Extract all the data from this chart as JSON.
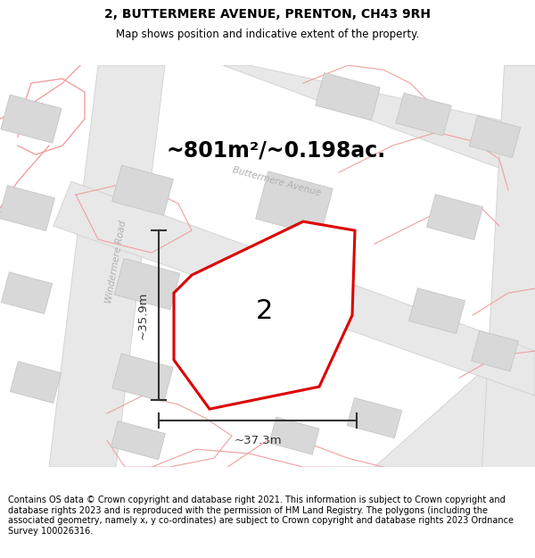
{
  "title": "2, BUTTERMERE AVENUE, PRENTON, CH43 9RH",
  "subtitle": "Map shows position and indicative extent of the property.",
  "area_label": "~801m²/~0.198ac.",
  "plot_number": "2",
  "dim_vertical": "~35.9m",
  "dim_horizontal": "~37.3m",
  "footer": "Contains OS data © Crown copyright and database right 2021. This information is subject to Crown copyright and database rights 2023 and is reproduced with the permission of HM Land Registry. The polygons (including the associated geometry, namely x, y co-ordinates) are subject to Crown copyright and database rights 2023 Ordnance Survey 100026316.",
  "background_color": "#ffffff",
  "road_fill": "#e8e8e8",
  "road_edge": "#d0d0d0",
  "building_fill": "#d8d8d8",
  "building_edge": "#c0c0c0",
  "red_line_color": "#dd0000",
  "pink_color": "#f0a0a0",
  "dim_color": "#333333",
  "label_color": "#b0b0b0",
  "title_fontsize": 10,
  "subtitle_fontsize": 8.5,
  "area_fontsize": 17,
  "plot_num_fontsize": 22,
  "footer_fontsize": 7,
  "street1": "Windermere Road",
  "street2": "Buttermere Avenue",
  "figsize": [
    6.0,
    6.25
  ],
  "dpi": 100
}
